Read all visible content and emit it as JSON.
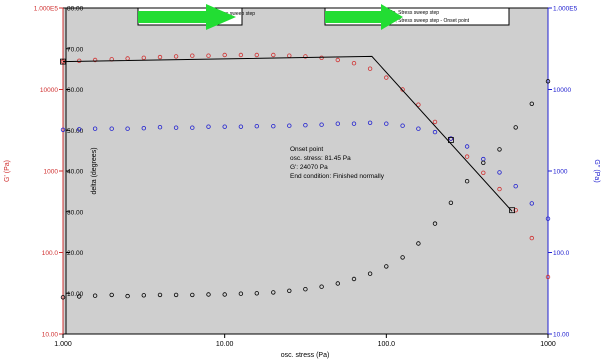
{
  "chart_data": {
    "type": "scatter",
    "xlabel": "osc. stress (Pa)",
    "x_log": true,
    "xlim": [
      1,
      1000
    ],
    "x_ticks": [
      "1.000",
      "10.00",
      "100.0",
      "1000"
    ],
    "left_axis": {
      "label": "G' (Pa)",
      "log": true,
      "ylim": [
        10,
        100000
      ],
      "ticks": [
        "10.00",
        "100.0",
        "1000",
        "10000",
        "1.000E5"
      ],
      "color": "#d03030"
    },
    "delta_axis": {
      "label": "delta (degrees)",
      "ylim": [
        0,
        80
      ],
      "ticks": [
        "0",
        "10.00",
        "20.00",
        "30.00",
        "40.00",
        "50.00",
        "60.00",
        "70.00",
        "80.00"
      ],
      "color": "#000000"
    },
    "right_axis": {
      "label": "G'' (Pa)",
      "log": true,
      "ylim": [
        10,
        100000
      ],
      "ticks": [
        "10.00",
        "100.0",
        "1000",
        "10000",
        "1.000E5"
      ],
      "color": "#2020d0"
    },
    "legend": {
      "placement": "top",
      "entries": [
        "...-5o, Stress sweep step",
        "...-5o, Stress sweep step - Onset point"
      ]
    },
    "annotation": {
      "lines": [
        "Onset point",
        "osc. stress: 81.45 Pa",
        "G': 24070 Pa",
        "End condition: Finished normally"
      ]
    },
    "series": [
      {
        "axis": "left",
        "color": "#d03030",
        "x": [
          1.0,
          1.26,
          1.58,
          2.0,
          2.51,
          3.16,
          3.98,
          5.01,
          6.31,
          7.94,
          10.0,
          12.6,
          15.8,
          20.0,
          25.1,
          31.6,
          39.8,
          50.1,
          63.1,
          79.4,
          100,
          126,
          158,
          200,
          251,
          316,
          398,
          501,
          631,
          794,
          1000
        ],
        "values": [
          22000,
          22500,
          23000,
          23500,
          24000,
          24500,
          25000,
          25500,
          26000,
          26000,
          26500,
          26500,
          26500,
          26500,
          26000,
          25500,
          24500,
          23000,
          21000,
          18000,
          14000,
          10000,
          6500,
          4000,
          2500,
          1500,
          950,
          600,
          330,
          150,
          50
        ]
      },
      {
        "axis": "right",
        "color": "#2020d0",
        "x": [
          1.0,
          1.26,
          1.58,
          2.0,
          2.51,
          3.16,
          3.98,
          5.01,
          6.31,
          7.94,
          10.0,
          12.6,
          15.8,
          20.0,
          25.1,
          31.6,
          39.8,
          50.1,
          63.1,
          79.4,
          100,
          126,
          158,
          200,
          251,
          316,
          398,
          501,
          631,
          794,
          1000
        ],
        "values": [
          3200,
          3250,
          3300,
          3300,
          3300,
          3350,
          3450,
          3400,
          3400,
          3500,
          3500,
          3500,
          3550,
          3550,
          3600,
          3650,
          3700,
          3800,
          3800,
          3900,
          3800,
          3600,
          3300,
          3000,
          2500,
          2000,
          1400,
          960,
          650,
          400,
          260
        ]
      },
      {
        "axis": "delta",
        "color": "#000000",
        "x": [
          1.0,
          1.26,
          1.58,
          2.0,
          2.51,
          3.16,
          3.98,
          5.01,
          6.31,
          7.94,
          10.0,
          12.6,
          15.8,
          20.0,
          25.1,
          31.6,
          39.8,
          50.1,
          63.1,
          79.4,
          100,
          126,
          158,
          200,
          251,
          316,
          398,
          501,
          631,
          794,
          1000
        ],
        "values": [
          9.0,
          9.2,
          9.4,
          9.6,
          9.3,
          9.5,
          9.6,
          9.6,
          9.6,
          9.7,
          9.7,
          9.9,
          10.0,
          10.2,
          10.6,
          11.0,
          11.6,
          12.4,
          13.5,
          14.8,
          16.6,
          18.8,
          22.2,
          27.1,
          32.2,
          37.5,
          42.0,
          45.3,
          50.7,
          56.5,
          62.0
        ]
      }
    ],
    "fit_line": {
      "axis": "left",
      "color": "#000000",
      "x": [
        1.0,
        81.45,
        600
      ],
      "values": [
        22000,
        25500,
        320
      ]
    },
    "onset_markers": {
      "axis": "left",
      "x": [
        1.0,
        251,
        600
      ],
      "values": [
        22000,
        2400,
        330
      ]
    }
  }
}
